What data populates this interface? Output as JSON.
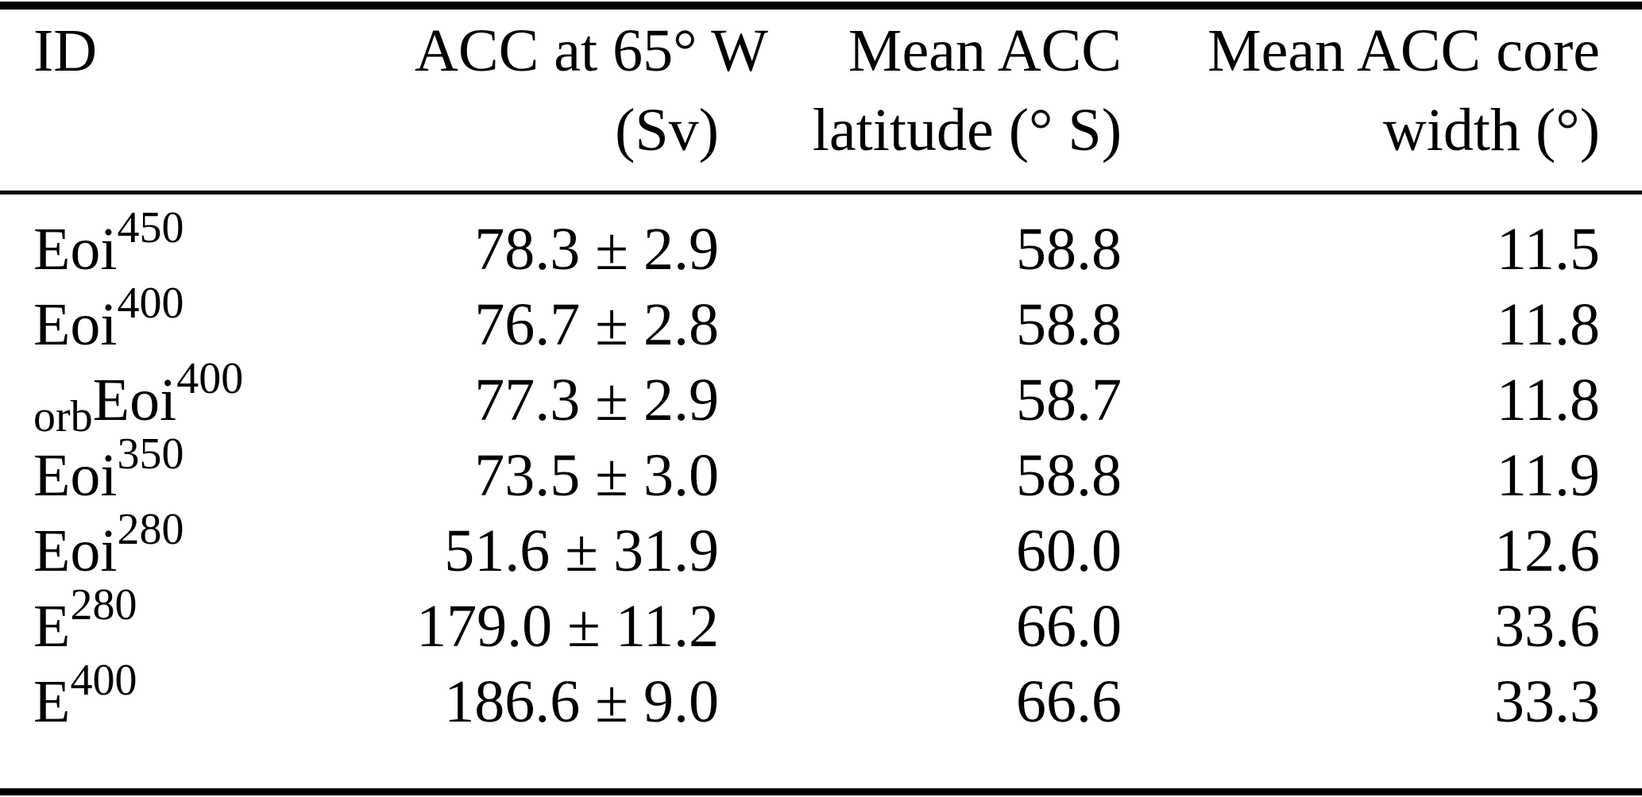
{
  "colors": {
    "background": "#ffffff",
    "text": "#000000",
    "rule": "#000000"
  },
  "table": {
    "headers": [
      {
        "line1": "ID",
        "line2": ""
      },
      {
        "line1": "ACC at 65° W",
        "line2": "(Sv)"
      },
      {
        "line1": "Mean ACC",
        "line2": "latitude (° S)"
      },
      {
        "line1": "Mean ACC core",
        "line2": "width (°)"
      }
    ],
    "rows": [
      {
        "id": {
          "prefix": "",
          "base": "Eoi",
          "sup": "450"
        },
        "acc": "78.3 ± 2.9",
        "latitude": "58.8",
        "core_width": "11.5"
      },
      {
        "id": {
          "prefix": "",
          "base": "Eoi",
          "sup": "400"
        },
        "acc": "76.7 ± 2.8",
        "latitude": "58.8",
        "core_width": "11.8"
      },
      {
        "id": {
          "prefix": "orb",
          "base": "Eoi",
          "sup": "400"
        },
        "acc": "77.3 ± 2.9",
        "latitude": "58.7",
        "core_width": "11.8"
      },
      {
        "id": {
          "prefix": "",
          "base": "Eoi",
          "sup": "350"
        },
        "acc": "73.5 ± 3.0",
        "latitude": "58.8",
        "core_width": "11.9"
      },
      {
        "id": {
          "prefix": "",
          "base": "Eoi",
          "sup": "280"
        },
        "acc": "51.6 ± 31.9",
        "latitude": "60.0",
        "core_width": "12.6"
      },
      {
        "id": {
          "prefix": "",
          "base": "E",
          "sup": "280"
        },
        "acc": "179.0 ± 11.2",
        "latitude": "66.0",
        "core_width": "33.6"
      },
      {
        "id": {
          "prefix": "",
          "base": "E",
          "sup": "400"
        },
        "acc": "186.6 ± 9.0",
        "latitude": "66.6",
        "core_width": "33.3"
      }
    ]
  },
  "chart_data": {
    "type": "table",
    "columns": [
      "ID",
      "ACC at 65° W (Sv)",
      "Mean ACC latitude (° S)",
      "Mean ACC core width (°)"
    ],
    "rows": [
      [
        "Eoi^450",
        "78.3 ± 2.9",
        58.8,
        11.5
      ],
      [
        "Eoi^400",
        "76.7 ± 2.8",
        58.8,
        11.8
      ],
      [
        "orb_Eoi^400",
        "77.3 ± 2.9",
        58.7,
        11.8
      ],
      [
        "Eoi^350",
        "73.5 ± 3.0",
        58.8,
        11.9
      ],
      [
        "Eoi^280",
        "51.6 ± 31.9",
        60.0,
        12.6
      ],
      [
        "E^280",
        "179.0 ± 11.2",
        66.0,
        33.6
      ],
      [
        "E^400",
        "186.6 ± 9.0",
        66.6,
        33.3
      ]
    ]
  }
}
